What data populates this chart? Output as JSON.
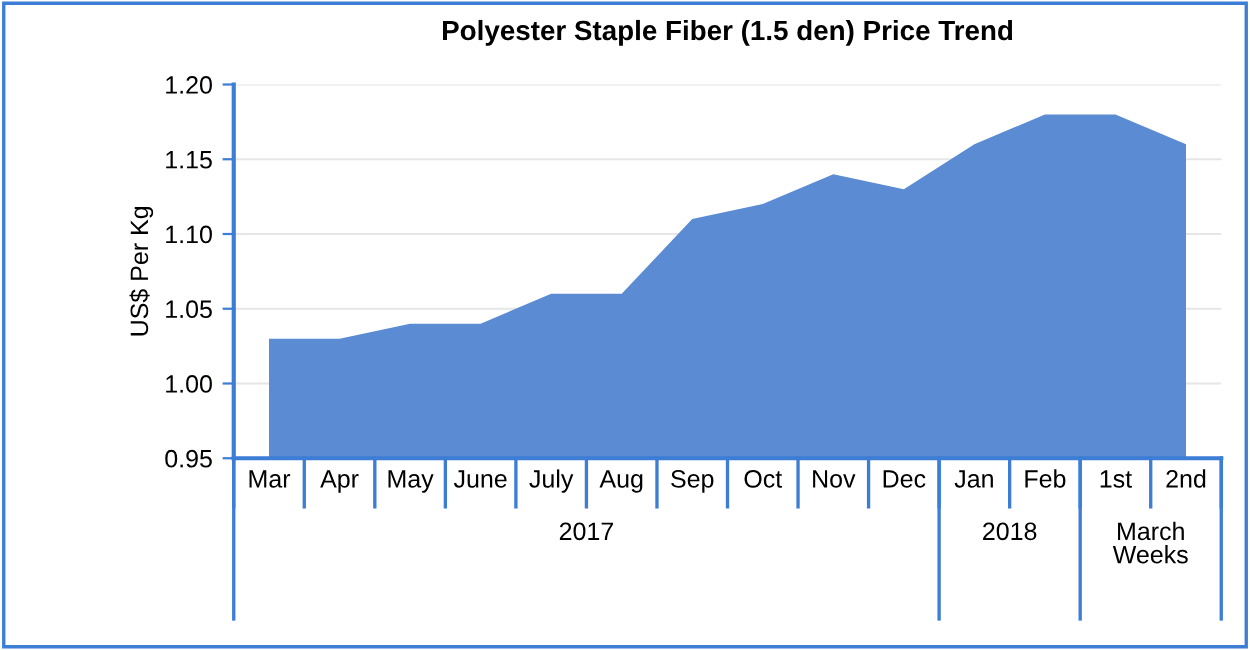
{
  "chart_data": {
    "type": "area",
    "title": "Polyester Staple Fiber (1.5 den) Price Trend",
    "ylabel": "US$ Per Kg",
    "categories": [
      "Mar",
      "Apr",
      "May",
      "June",
      "July",
      "Aug",
      "Sep",
      "Oct",
      "Nov",
      "Dec",
      "Jan",
      "Feb",
      "1st",
      "2nd"
    ],
    "values": [
      1.03,
      1.03,
      1.04,
      1.04,
      1.06,
      1.06,
      1.11,
      1.12,
      1.14,
      1.13,
      1.16,
      1.18,
      1.18,
      1.16
    ],
    "color": "#5b8bd3",
    "ylim": [
      0.95,
      1.2
    ],
    "yticks": [
      0.95,
      {
        "value": 1.0,
        "label": "1.00"
      },
      1.05,
      {
        "value": 1.1,
        "label": "1.10"
      },
      1.15,
      {
        "value": 1.2,
        "label": "1.20"
      }
    ],
    "grid": "y",
    "annotations": [
      "2017",
      "2018",
      "March\nWeeks"
    ]
  }
}
